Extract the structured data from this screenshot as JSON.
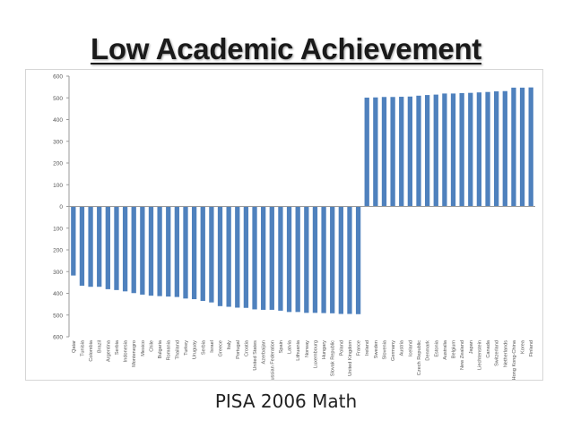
{
  "slide": {
    "title": "Low Academic Achievement",
    "caption": "PISA 2006 Math"
  },
  "colors": {
    "bar": "#4f81bd",
    "axis": "#9a9a9a",
    "tick_text": "#555555",
    "title_text": "#1a1a1a"
  },
  "chart_data": {
    "type": "bar",
    "title": "",
    "xlabel": "",
    "ylabel": "",
    "ylim": [
      -600,
      600
    ],
    "yticks": [
      600,
      500,
      400,
      300,
      200,
      100,
      0,
      100,
      200,
      300,
      400,
      500,
      600
    ],
    "grid": false,
    "legend": "none",
    "categories": [
      "Qatar",
      "Tunisia",
      "Colombia",
      "Brazil",
      "Argentina",
      "Serbia",
      "Indonesia",
      "Montenegro",
      "Mexico",
      "Chile",
      "Bulgaria",
      "Romania",
      "Thailand",
      "Turkey",
      "Uruguay",
      "Serbia",
      "Israel",
      "Greece",
      "Italy",
      "Portugal",
      "Croatia",
      "United States",
      "Azerbaijan",
      "Russian Federation",
      "Spain",
      "Latvia",
      "Lithuania",
      "Norway",
      "Luxembourg",
      "Hungary",
      "Slovak Republic",
      "Poland",
      "United Kingdom",
      "France",
      "Ireland",
      "Sweden",
      "Slovenia",
      "Germany",
      "Austria",
      "Iceland",
      "Czech Republic",
      "Denmark",
      "Estonia",
      "Australia",
      "Belgium",
      "New Zealand",
      "Japan",
      "Liechtenstein",
      "Canada",
      "Switzerland",
      "Netherlands",
      "Hong Kong-China",
      "Korea",
      "Finland"
    ],
    "values": [
      -318,
      -365,
      -370,
      -370,
      -381,
      -385,
      -391,
      -399,
      -406,
      -411,
      -413,
      -415,
      -417,
      -424,
      -427,
      -435,
      -442,
      -459,
      -462,
      -466,
      -467,
      -474,
      -476,
      -476,
      -480,
      -486,
      -486,
      -490,
      -490,
      -491,
      -492,
      -495,
      -495,
      -496,
      501,
      502,
      504,
      504,
      505,
      506,
      510,
      513,
      515,
      520,
      520,
      522,
      523,
      525,
      527,
      530,
      531,
      547,
      547,
      548
    ]
  }
}
